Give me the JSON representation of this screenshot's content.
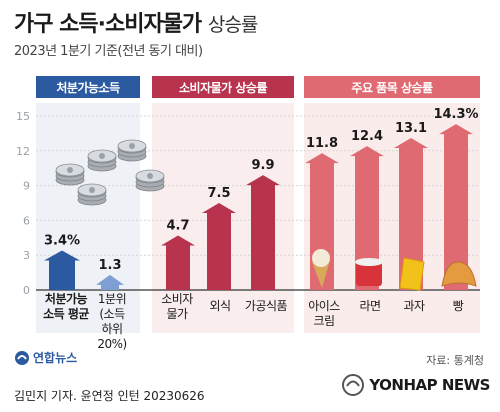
{
  "header": {
    "title_bold": "가구 소득·소비자물가",
    "title_light": "상승률",
    "subtitle": "2023년 1분기 기준(전년 동기 대비)"
  },
  "panels": [
    {
      "label": "처분가능소득"
    },
    {
      "label": "소비자물가 상승률"
    },
    {
      "label": "주요 품목 상승률"
    }
  ],
  "chart_data": {
    "type": "bar",
    "ylim": [
      0,
      15
    ],
    "yticks": [
      "0",
      "3",
      "6",
      "9",
      "12",
      "15"
    ],
    "series": [
      {
        "name": "처분가능소득",
        "categories": [
          "처분가능 소득 평균",
          "1분위 (소득 하위 20%)"
        ],
        "values": [
          3.4,
          1.3
        ],
        "labels": [
          "3.4%",
          "1.3"
        ]
      },
      {
        "name": "소비자물가 상승률",
        "categories": [
          "소비자 물가",
          "외식",
          "가공식품"
        ],
        "values": [
          4.7,
          7.5,
          9.9
        ],
        "labels": [
          "4.7",
          "7.5",
          "9.9"
        ]
      },
      {
        "name": "주요 품목 상승률",
        "categories": [
          "아이스 크림",
          "라면",
          "과자",
          "빵"
        ],
        "values": [
          11.8,
          12.4,
          13.1,
          14.3
        ],
        "labels": [
          "11.8",
          "12.4",
          "13.1",
          "14.3%"
        ]
      }
    ],
    "colors": {
      "income": "#2c5aa0",
      "income_light": "#7d9fd3",
      "cpi": "#b8334d",
      "items": "#e06a72"
    }
  },
  "categories_text": {
    "c1": [
      "처분가능",
      "소득 평균"
    ],
    "c2": [
      "1분위",
      "(소득",
      "하위",
      "20%)"
    ],
    "c3": [
      "소비자",
      "물가"
    ],
    "c4": [
      "외식"
    ],
    "c5": [
      "가공식품"
    ],
    "c6": [
      "아이스",
      "크림"
    ],
    "c7": [
      "라면"
    ],
    "c8": [
      "과자"
    ],
    "c9": [
      "빵"
    ]
  },
  "source": "자료: 통계청",
  "logo_left": "연합뉴스",
  "logo_right": "YONHAP NEWS",
  "footer": "김민지 기자. 윤연정 인턴 20230626",
  "icons": [
    "coins-icon",
    "ice-cream-icon",
    "ramen-icon",
    "snack-icon",
    "bread-icon"
  ]
}
